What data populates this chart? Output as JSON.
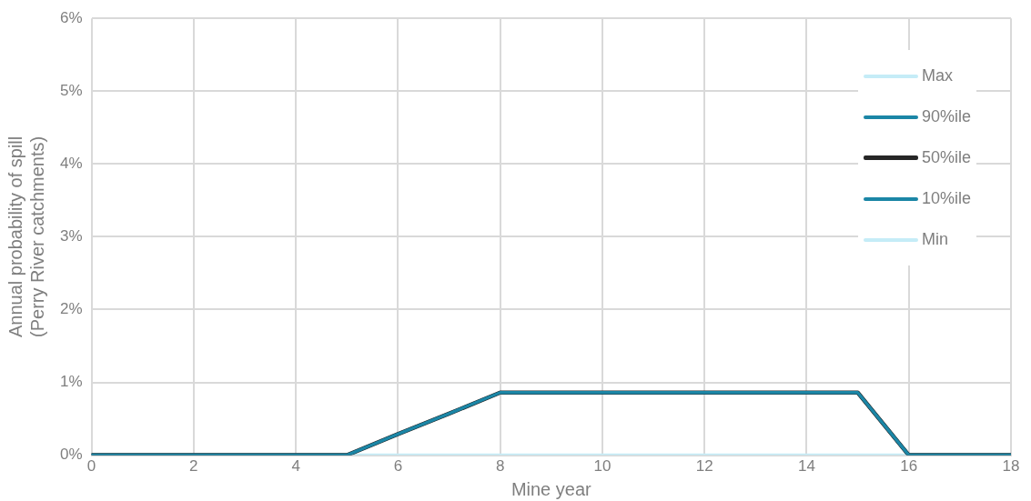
{
  "chart_data": {
    "type": "line",
    "xlabel": "Mine year",
    "ylabel": "Annual probability of spill\n(Perry River catchments)",
    "x": [
      0,
      1,
      2,
      3,
      4,
      5,
      6,
      7,
      8,
      9,
      10,
      11,
      12,
      13,
      14,
      15,
      16,
      17,
      18
    ],
    "series": [
      {
        "name": "Max",
        "color": "#c5ecf7",
        "values": [
          null,
          null,
          null,
          null,
          null,
          null,
          null,
          null,
          null,
          null,
          null,
          null,
          null,
          null,
          null,
          null,
          null,
          null,
          null
        ]
      },
      {
        "name": "90%ile",
        "color": "#1b86a6",
        "values": [
          0,
          0,
          0,
          0,
          0,
          0,
          0.29,
          0.57,
          0.86,
          0.86,
          0.86,
          0.86,
          0.86,
          0.86,
          0.86,
          0.86,
          0,
          0,
          0
        ]
      },
      {
        "name": "50%ile",
        "color": "#262626",
        "values": [
          0,
          0,
          0,
          0,
          0,
          0,
          0.29,
          0.57,
          0.86,
          0.86,
          0.86,
          0.86,
          0.86,
          0.86,
          0.86,
          0.86,
          0,
          0,
          0
        ]
      },
      {
        "name": "10%ile",
        "color": "#1b86a6",
        "values": [
          0,
          0,
          0,
          0,
          0,
          0,
          0.29,
          0.57,
          0.86,
          0.86,
          0.86,
          0.86,
          0.86,
          0.86,
          0.86,
          0.86,
          0,
          0,
          0
        ]
      },
      {
        "name": "Min",
        "color": "#c5ecf7",
        "values": [
          0,
          0,
          0,
          0,
          0,
          0,
          0,
          0,
          0,
          0,
          0,
          0,
          0,
          0,
          0,
          0,
          0,
          0,
          0
        ]
      }
    ],
    "xlim": [
      0,
      18
    ],
    "xticks": [
      0,
      2,
      4,
      6,
      8,
      10,
      12,
      14,
      16,
      18
    ],
    "ylim": [
      0,
      6
    ],
    "yticks": [
      {
        "value": 0,
        "label": "0%"
      },
      {
        "value": 1,
        "label": "1%"
      },
      {
        "value": 2,
        "label": "2%"
      },
      {
        "value": 3,
        "label": "3%"
      },
      {
        "value": 4,
        "label": "4%"
      },
      {
        "value": 5,
        "label": "5%"
      },
      {
        "value": 6,
        "label": "6%"
      }
    ],
    "grid": true,
    "legend": "right",
    "marker": "none",
    "line_style": "solid"
  }
}
